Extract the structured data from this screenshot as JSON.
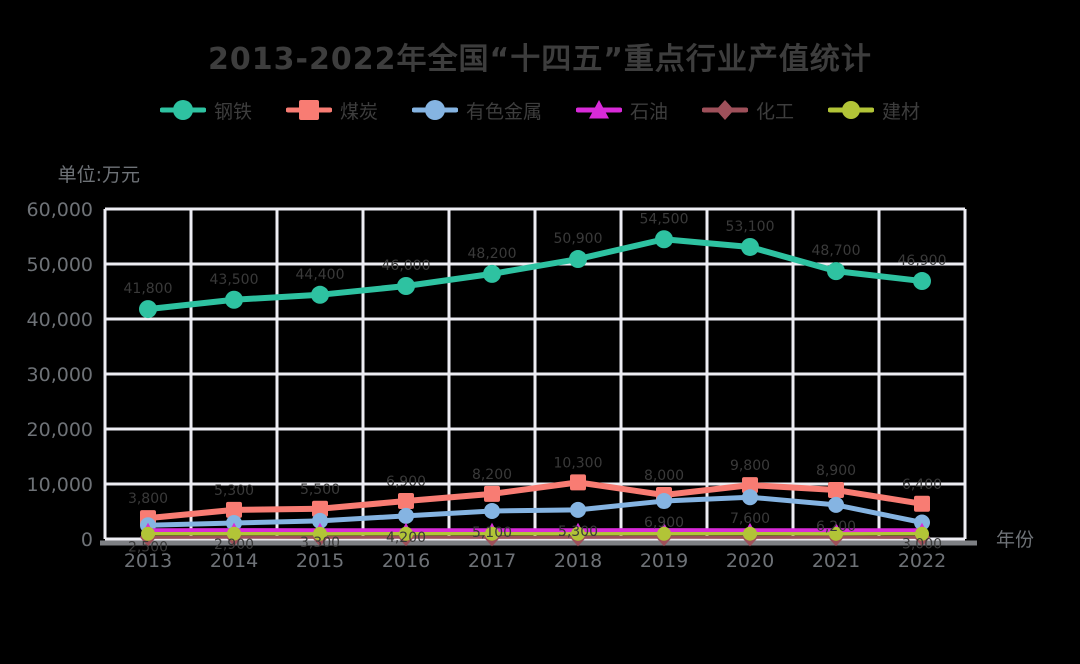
{
  "page": {
    "background": "#000000"
  },
  "chart_data": {
    "type": "line",
    "title": "2013-2022年全国“十四五”重点行业产值统计",
    "y_axis_name": "单位:万元",
    "x_axis_name": "年份",
    "categories": [
      "2013",
      "2014",
      "2015",
      "2016",
      "2017",
      "2018",
      "2019",
      "2020",
      "2021",
      "2022"
    ],
    "y_ticks": [
      0,
      10000,
      20000,
      30000,
      40000,
      50000,
      60000
    ],
    "ylim": [
      0,
      60000
    ],
    "grid": true,
    "grid_color": "#EDEDF3",
    "axis_line_color": "#7E8084",
    "legend_position": "top",
    "text_colors": {
      "title": "#3D3D3D",
      "axis": "#6E7277",
      "value_labels": "#3A3A3A"
    },
    "series": [
      {
        "name": "钢铁",
        "color": "#2EC2A1",
        "marker": "circle",
        "marker_size": 9,
        "line_width": 6,
        "show_labels": true,
        "label_dy": -16,
        "values": [
          41800,
          43500,
          44400,
          46000,
          48200,
          50900,
          54500,
          53100,
          48700,
          46900
        ]
      },
      {
        "name": "煤炭",
        "color": "#F87C73",
        "marker": "square",
        "marker_size": 8,
        "line_width": 6,
        "show_labels": true,
        "label_dy": -15,
        "values": [
          3800,
          5300,
          5500,
          6900,
          8200,
          10300,
          8000,
          9800,
          8900,
          6400
        ]
      },
      {
        "name": "有色金属",
        "color": "#85B4E2",
        "marker": "circle",
        "marker_size": 8,
        "line_width": 5,
        "show_labels": true,
        "label_dy": 26,
        "values": [
          2500,
          2900,
          3300,
          4200,
          5100,
          5300,
          6900,
          7600,
          6200,
          3000
        ]
      },
      {
        "name": "石油",
        "color": "#D92AD9",
        "marker": "triangle",
        "marker_size": 8,
        "line_width": 5,
        "show_labels": false,
        "label_dy": -14,
        "values": [
          1500,
          1520,
          1500,
          1510,
          1490,
          1500,
          1520,
          1500,
          1510,
          1490
        ]
      },
      {
        "name": "化工",
        "color": "#9E505A",
        "marker": "diamond",
        "marker_size": 9,
        "line_width": 3,
        "show_labels": false,
        "label_dy": -14,
        "values": [
          300,
          320,
          300,
          310,
          290,
          300,
          320,
          300,
          310,
          290
        ]
      },
      {
        "name": "建材",
        "color": "#B2C437",
        "marker": "circle",
        "marker_size": 7,
        "line_width": 3.5,
        "show_labels": false,
        "label_dy": -14,
        "values": [
          950,
          960,
          940,
          950,
          960,
          940,
          950,
          960,
          940,
          950
        ]
      }
    ]
  }
}
